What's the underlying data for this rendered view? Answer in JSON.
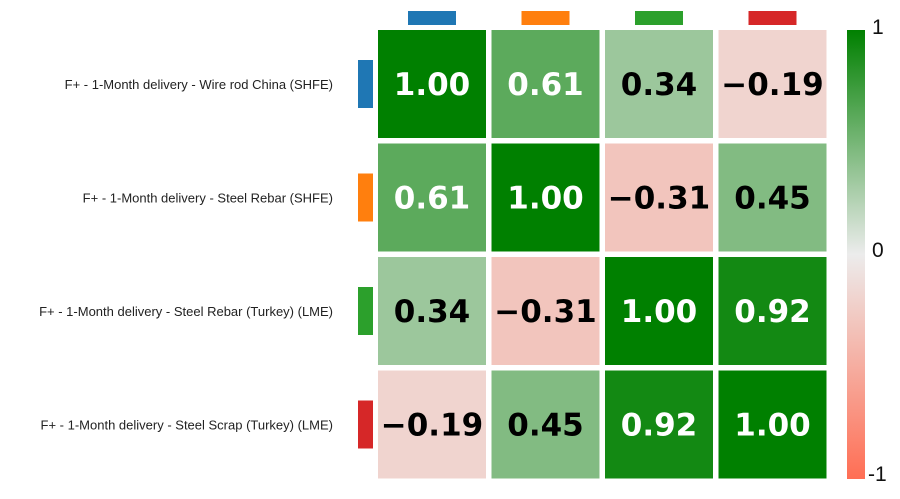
{
  "chart_data": {
    "type": "heatmap",
    "rows": [
      "F+ - 1-Month delivery - Wire rod China (SHFE)",
      "F+ - 1-Month delivery - Steel Rebar (SHFE)",
      "F+ - 1-Month delivery - Steel Rebar (Turkey) (LME)",
      "F+ - 1-Month delivery - Steel Scrap (Turkey) (LME)"
    ],
    "values": [
      [
        1.0,
        0.61,
        0.34,
        -0.19
      ],
      [
        0.61,
        1.0,
        -0.31,
        0.45
      ],
      [
        0.34,
        -0.31,
        1.0,
        0.92
      ],
      [
        -0.19,
        0.45,
        0.92,
        1.0
      ]
    ],
    "value_labels": [
      [
        "1.00",
        "0.61",
        "0.34",
        "−0.19"
      ],
      [
        "0.61",
        "1.00",
        "−0.31",
        "0.45"
      ],
      [
        "0.34",
        "−0.31",
        "1.00",
        "0.92"
      ],
      [
        "−0.19",
        "0.45",
        "0.92",
        "1.00"
      ]
    ],
    "series_colors": [
      "#1f77b4",
      "#ff7f0e",
      "#2ca02c",
      "#d62728"
    ],
    "colorbar": {
      "range": [
        -1,
        1
      ],
      "tick_labels": [
        "1",
        "0",
        "-1"
      ],
      "colors": {
        "max": "#008000",
        "mid": "#ececec",
        "min": "#ff6e54"
      }
    },
    "legend": "none",
    "grid": false
  }
}
